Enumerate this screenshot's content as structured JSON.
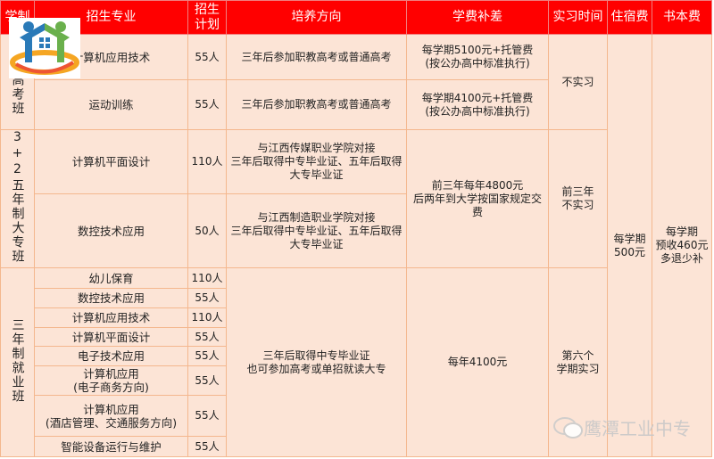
{
  "header": [
    "学制",
    "招生专业",
    "招生计划",
    "培养方向",
    "学费补差",
    "实习时间",
    "住宿费",
    "书本费"
  ],
  "groups": {
    "g1": {
      "label": "普通高考班",
      "rows": [
        {
          "major": "计算机应用技术",
          "plan": "55人",
          "direction": "三年后参加职教高考或普通高考",
          "fee": "每学期5100元+托管费\n(按公办高中标准执行)"
        },
        {
          "major": "运动训练",
          "plan": "55人",
          "direction": "三年后参加职教高考或普通高考",
          "fee": "每学期4100元+托管费\n(按公办高中标准执行)"
        }
      ],
      "internship": "不实习"
    },
    "g2": {
      "label": "3+2五年制大专班",
      "rows": [
        {
          "major": "计算机平面设计",
          "plan": "110人",
          "direction": "与江西传媒职业学院对接\n三年后取得中专毕业证、五年后取得大专毕业证"
        },
        {
          "major": "数控技术应用",
          "plan": "50人",
          "direction": "与江西制造职业学院对接\n三年后取得中专毕业证、五年后取得大专毕业证"
        }
      ],
      "fee": "前三年每年4800元\n后两年到大学按国家规定交费",
      "internship": "前三年\n不实习"
    },
    "g3": {
      "label": "三年制就业班",
      "rows": [
        {
          "major": "幼儿保育",
          "plan": "110人"
        },
        {
          "major": "数控技术应用",
          "plan": "55人"
        },
        {
          "major": "计算机应用技术",
          "plan": "110人"
        },
        {
          "major": "计算机平面设计",
          "plan": "55人"
        },
        {
          "major": "电子技术应用",
          "plan": "55人"
        },
        {
          "major": "计算机应用\n(电子商务方向)",
          "plan": "55人"
        },
        {
          "major": "计算机应用\n(酒店管理、交通服务方向)",
          "plan": "55人"
        },
        {
          "major": "智能设备运行与维护",
          "plan": "55人"
        }
      ],
      "direction": "三年后取得中专毕业证\n也可参加高考或单招就读大专",
      "fee": "每年4100元",
      "internship": "第六个\n学期实习"
    }
  },
  "dorm": "每学期\n500元",
  "books": "每学期\n预收460元\n多退少补",
  "watermark": "鹰潭工业中专",
  "colors": {
    "header": "#ff0000",
    "cell": "#fce4d6",
    "border": "#f4b78e"
  },
  "icons": [
    "school-logo",
    "wechat-icon"
  ]
}
